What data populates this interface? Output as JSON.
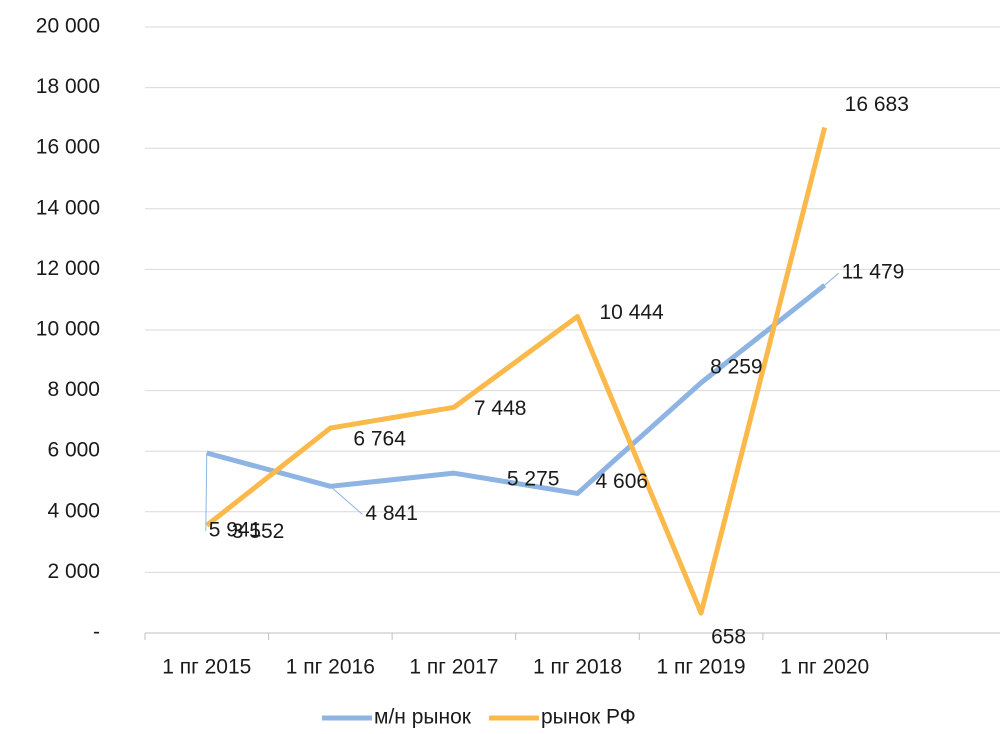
{
  "chart_data": {
    "type": "line",
    "categories": [
      "1 пг 2015",
      "1 пг 2016",
      "1 пг 2017",
      "1 пг 2018",
      "1 пг 2019",
      "1 пг 2020",
      null
    ],
    "series": [
      {
        "name": "м/н рынок",
        "color": "#8eb4e3",
        "values": [
          5941,
          4841,
          5275,
          4606,
          8259,
          11479,
          null
        ],
        "value_labels": [
          "5 941",
          "4 841",
          "5 275",
          "4 606",
          "8 259",
          "11 479",
          null
        ]
      },
      {
        "name": "рынок РФ",
        "color": "#fbb94b",
        "values": [
          3552,
          6764,
          7448,
          10444,
          658,
          16683,
          null
        ],
        "value_labels": [
          "3 552",
          "6 764",
          "7 448",
          "10 444",
          "658",
          "16 683",
          null
        ]
      }
    ],
    "ylim": [
      0,
      20000
    ],
    "yticks": [
      {
        "value": 0,
        "label": "-"
      },
      {
        "value": 2000,
        "label": "2 000"
      },
      {
        "value": 4000,
        "label": "4 000"
      },
      {
        "value": 6000,
        "label": "6 000"
      },
      {
        "value": 8000,
        "label": "8 000"
      },
      {
        "value": 10000,
        "label": "10 000"
      },
      {
        "value": 12000,
        "label": "12 000"
      },
      {
        "value": 14000,
        "label": "14 000"
      },
      {
        "value": 16000,
        "label": "16 000"
      },
      {
        "value": 18000,
        "label": "18 000"
      },
      {
        "value": 20000,
        "label": "20 000"
      }
    ],
    "grid": true,
    "legend": "bottom"
  }
}
